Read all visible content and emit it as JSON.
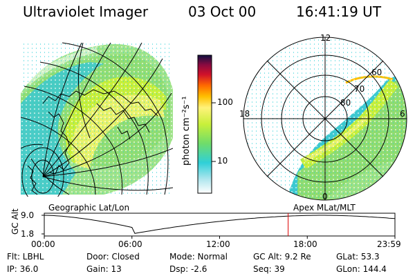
{
  "header": {
    "title": "Ultraviolet Imager",
    "date": "03 Oct 00",
    "time": "16:41:19 UT"
  },
  "left_panel": {
    "caption": "Geographic Lat/Lon"
  },
  "colorbar": {
    "label": "photon cm⁻²s⁻¹",
    "ticks": [
      "100",
      "10"
    ]
  },
  "right_panel": {
    "caption": "Apex MLat/MLT",
    "mlt_labels": [
      "12",
      "18",
      "6",
      "0"
    ],
    "lat_labels": [
      "60",
      "70",
      "80"
    ]
  },
  "timeline": {
    "y_label": "GC Alt",
    "y_ticks": [
      "9.0",
      "1.8"
    ],
    "x_ticks": [
      "00:00",
      "06:00",
      "12:00",
      "18:00",
      "23:59"
    ],
    "current_marker_hour": 16.69,
    "marker_color": "#dd0000"
  },
  "info": {
    "filter": "Flt: LBHL",
    "ip": "IP: 36.0",
    "door": "Door: Closed",
    "gain": "Gain: 13",
    "mode": "Mode: Normal",
    "dsp": "Dsp:   -2.6",
    "gc_alt": "GC Alt: 9.2 Re",
    "seq": "Seq: 39",
    "glat": "GLat:  53.3",
    "glon": "GLon: 144.4"
  }
}
